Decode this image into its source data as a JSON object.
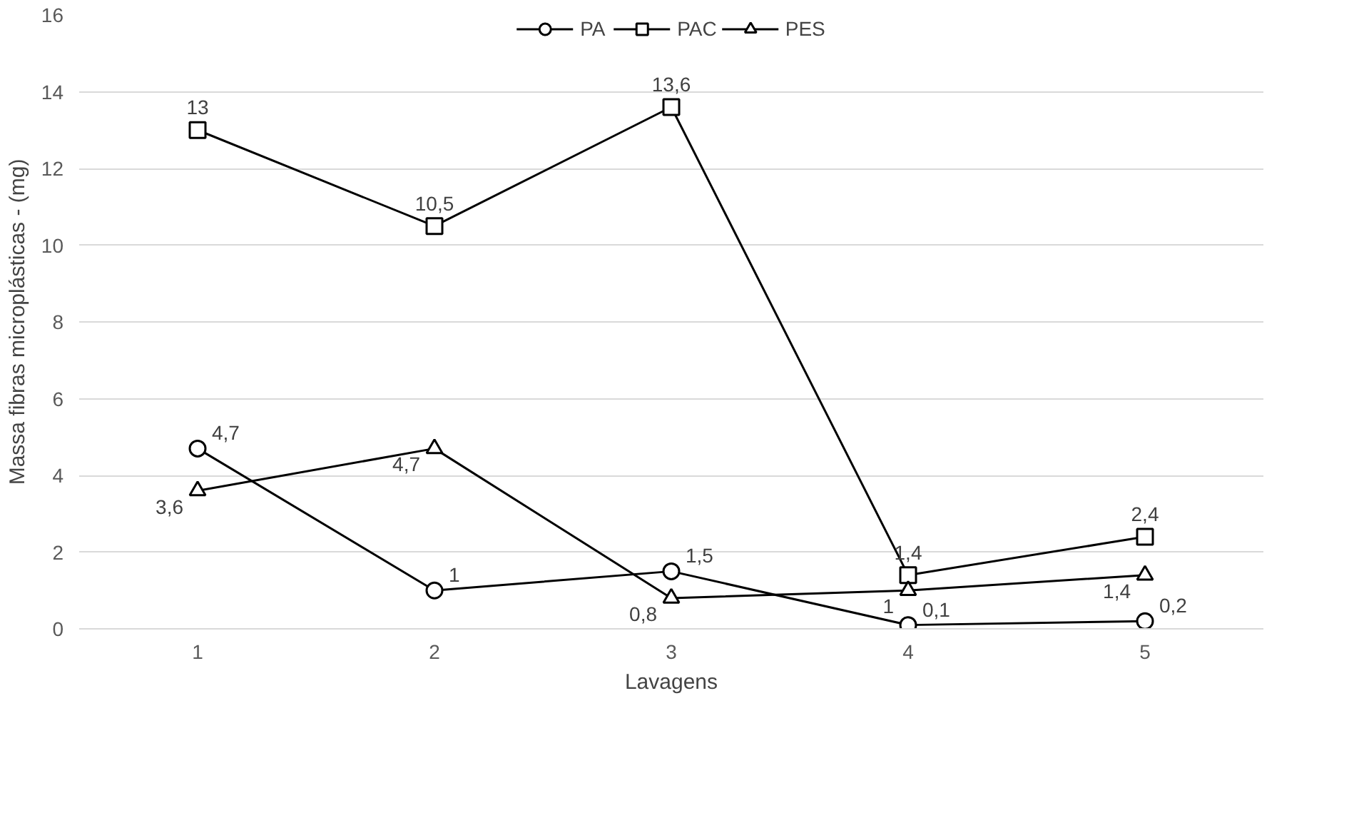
{
  "chart_data": {
    "type": "line",
    "xlabel": "Lavagens",
    "ylabel": "Massa fibras microplásticas - (mg)",
    "categories": [
      "1",
      "2",
      "3",
      "4",
      "5"
    ],
    "ylim": [
      0,
      16
    ],
    "yticks": [
      0,
      2,
      4,
      6,
      8,
      10,
      12,
      14,
      16
    ],
    "grid": "y",
    "legend": "top",
    "line_style": "solid",
    "series": [
      {
        "name": "PA",
        "color": "#000000",
        "marker": "circle",
        "values": [
          4.7,
          1,
          1.5,
          0.1,
          0.2
        ],
        "value_labels": [
          "4,7",
          "1",
          "1,5",
          "0,1",
          "0,2"
        ]
      },
      {
        "name": "PAC",
        "color": "#000000",
        "marker": "square",
        "values": [
          13,
          10.5,
          13.6,
          1.4,
          2.4
        ],
        "value_labels": [
          "13",
          "10,5",
          "13,6",
          "1,4",
          "2,4"
        ]
      },
      {
        "name": "PES",
        "color": "#000000",
        "marker": "triangle",
        "values": [
          3.6,
          4.7,
          0.8,
          1,
          1.4
        ],
        "value_labels": [
          "3,6",
          "4,7",
          "0,8",
          "1",
          "1,4"
        ]
      }
    ]
  }
}
